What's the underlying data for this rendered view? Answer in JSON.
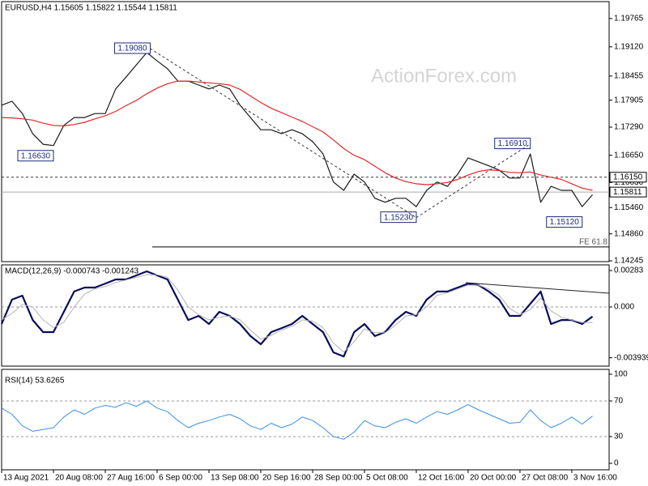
{
  "chart_data": [
    {
      "type": "line",
      "title": "EURUSD,H4  1.15605 1.15822 1.15544 1.15811",
      "watermark": "ActionForex.com",
      "x": [
        0,
        6,
        12,
        18,
        24,
        30,
        36,
        42,
        48,
        54,
        60,
        66,
        72,
        78,
        84,
        90,
        96,
        102,
        108,
        114,
        120,
        126,
        132,
        138,
        144,
        150,
        156,
        162,
        168,
        174,
        180,
        186,
        192,
        198,
        204,
        210,
        216,
        222,
        228,
        234,
        240,
        246,
        252,
        258,
        264,
        270,
        276,
        282,
        288,
        294,
        300,
        306,
        312,
        318,
        324,
        330,
        336,
        342
      ],
      "xlim": [
        0,
        351.6
      ],
      "ylim": [
        1.14245,
        1.2015
      ],
      "yticks": [
        1.19765,
        {
          "value": 1.1912,
          "label": "1.19120"
        },
        1.18455,
        1.17905,
        {
          "value": 1.1729,
          "label": "1.17290"
        },
        {
          "value": 1.1665,
          "label": "1.16650"
        },
        {
          "value": 1.1603,
          "label": "1.16030"
        },
        {
          "value": 1.1546,
          "label": "1.15460"
        },
        {
          "value": 1.1486,
          "label": "1.14860"
        },
        1.14245
      ],
      "series": [
        {
          "color": "#1a1a1a",
          "values": [
            1.1779,
            1.1788,
            1.176,
            1.1714,
            1.169,
            1.1687,
            1.1733,
            1.1751,
            1.1751,
            1.176,
            1.176,
            1.1816,
            1.1843,
            1.1871,
            1.1899,
            1.188,
            1.1862,
            1.1834,
            1.1834,
            1.1825,
            1.1816,
            1.1825,
            1.1816,
            1.1779,
            1.1751,
            1.1723,
            1.1723,
            1.1714,
            1.1723,
            1.1714,
            1.1696,
            1.1668,
            1.1604,
            1.1585,
            1.1622,
            1.1604,
            1.1567,
            1.1558,
            1.1567,
            1.1567,
            1.1548,
            1.1585,
            1.1604,
            1.1594,
            1.1622,
            1.1659,
            1.165,
            1.1641,
            1.1631,
            1.1613,
            1.1613,
            1.1668,
            1.1558,
            1.1594,
            1.1585,
            1.1585,
            1.1548,
            1.1575
          ]
        },
        {
          "color": "#e02828",
          "values": [
            1.1751,
            1.175,
            1.1748,
            1.1745,
            1.1738,
            1.1733,
            1.1732,
            1.1735,
            1.174,
            1.1748,
            1.1755,
            1.1765,
            1.1778,
            1.179,
            1.1805,
            1.1818,
            1.1828,
            1.1834,
            1.1834,
            1.1832,
            1.183,
            1.1828,
            1.1825,
            1.1815,
            1.18,
            1.1785,
            1.1772,
            1.1762,
            1.1752,
            1.1742,
            1.173,
            1.1718,
            1.17,
            1.168,
            1.1665,
            1.1655,
            1.164,
            1.1625,
            1.1613,
            1.1605,
            1.16,
            1.1598,
            1.16,
            1.1603,
            1.161,
            1.162,
            1.1628,
            1.1632,
            1.163,
            1.1626,
            1.1625,
            1.1627,
            1.162,
            1.1615,
            1.161,
            1.16,
            1.159,
            1.1585
          ]
        }
      ],
      "levels": [
        {
          "value": 1.1615,
          "label": "1.16150",
          "style": "dashed"
        },
        {
          "value": 1.15811,
          "label": "1.15811",
          "style": "solid"
        }
      ],
      "fe_level": {
        "value": 1.1456,
        "label": "FE 61.8"
      },
      "annotations": [
        {
          "label": "1.16630",
          "value": 1.1663,
          "x": 30
        },
        {
          "label": "1.19080",
          "value": 1.1908,
          "x": 86
        },
        {
          "label": "1.15230",
          "value": 1.1523,
          "x": 240
        },
        {
          "label": "1.16910",
          "value": 1.1691,
          "x": 306
        },
        {
          "label": "1.15120",
          "value": 1.1512,
          "x": 336
        }
      ]
    },
    {
      "type": "line",
      "title": "MACD(12,26,9) -0.000743 -0.001243",
      "ylim": [
        -0.00459,
        0.00327
      ],
      "yticks": [
        0.00283,
        {
          "value": 0,
          "label": "0.000"
        },
        -0.003939
      ],
      "levels": [
        0
      ],
      "series": [
        {
          "color": "#0b0b5e",
          "width": 2.2,
          "values": [
            -0.00132,
            0.00057,
            0.00088,
            -0.00101,
            -0.00195,
            -0.00195,
            -0.00038,
            0.0012,
            0.00151,
            0.00151,
            0.00182,
            0.00214,
            0.00214,
            0.00245,
            0.00277,
            0.00245,
            0.00214,
            0.00057,
            -0.00101,
            -0.00069,
            -0.00132,
            -0.00038,
            -0.00069,
            -0.00132,
            -0.00226,
            -0.00289,
            -0.00195,
            -0.00164,
            -0.00132,
            -0.00069,
            -0.00132,
            -0.00195,
            -0.00352,
            -0.00384,
            -0.00195,
            -0.00132,
            -0.00226,
            -0.00195,
            -0.00101,
            -0.00038,
            -0.00069,
            0.00057,
            0.0012,
            0.0012,
            0.00151,
            0.00182,
            0.0017,
            0.0012,
            0.00057,
            -0.00069,
            -0.00069,
            0.00025,
            0.0012,
            -0.00132,
            -0.00101,
            -0.00101,
            -0.00132,
            -0.00074
          ]
        },
        {
          "color": "#b4b4b4",
          "width": 1,
          "values": [
            -0.001,
            -0.0005,
            0.0002,
            0.0,
            -0.001,
            -0.0016,
            -0.0012,
            0.0,
            0.001,
            0.0014,
            0.0016,
            0.0019,
            0.0021,
            0.0023,
            0.0025,
            0.0025,
            0.0023,
            0.0013,
            0.0,
            -0.0006,
            -0.001,
            -0.0008,
            -0.0007,
            -0.001,
            -0.0018,
            -0.0025,
            -0.0022,
            -0.0018,
            -0.0015,
            -0.001,
            -0.0011,
            -0.0016,
            -0.0028,
            -0.0035,
            -0.0027,
            -0.0017,
            -0.002,
            -0.002,
            -0.0014,
            -0.0007,
            -0.0006,
            0.0,
            0.0009,
            0.0011,
            0.0014,
            0.0017,
            0.0017,
            0.0014,
            0.0009,
            -0.0001,
            -0.0006,
            -0.0002,
            0.0007,
            -0.0003,
            -0.0008,
            -0.001,
            -0.0012,
            -0.0012
          ]
        }
      ]
    },
    {
      "type": "line",
      "title": "RSI(14) 53.6265",
      "ylim": [
        0,
        100
      ],
      "yticks": [
        100,
        70,
        30,
        0
      ],
      "levels": [
        70,
        30
      ],
      "xticks": [
        {
          "value": 0,
          "label": "13 Aug 2021"
        },
        {
          "value": 30,
          "label": "20 Aug 08:00"
        },
        {
          "value": 60,
          "label": "27 Aug 16:00"
        },
        {
          "value": 90,
          "label": "6 Sep 00:00"
        },
        {
          "value": 120,
          "label": "13 Sep 08:00"
        },
        {
          "value": 150,
          "label": "20 Sep 16:00"
        },
        {
          "value": 180,
          "label": "28 Sep 00:00"
        },
        {
          "value": 210,
          "label": "5 Oct 08:00"
        },
        {
          "value": 240,
          "label": "12 Oct 16:00"
        },
        {
          "value": 270,
          "label": "20 Oct 00:00"
        },
        {
          "value": 300,
          "label": "27 Oct 08:00"
        },
        {
          "value": 330,
          "label": "3 Nov 16:00"
        }
      ],
      "series": [
        {
          "color": "#3a8ee6",
          "width": 1,
          "values": [
            62,
            55,
            42,
            36,
            38,
            40,
            52,
            60,
            55,
            62,
            65,
            63,
            68,
            64,
            70,
            62,
            58,
            48,
            40,
            45,
            48,
            52,
            55,
            50,
            42,
            38,
            45,
            40,
            44,
            52,
            48,
            40,
            30,
            27,
            35,
            48,
            42,
            40,
            46,
            50,
            45,
            52,
            58,
            55,
            60,
            66,
            60,
            55,
            50,
            45,
            46,
            60,
            48,
            40,
            45,
            52,
            44,
            53
          ]
        }
      ]
    }
  ]
}
